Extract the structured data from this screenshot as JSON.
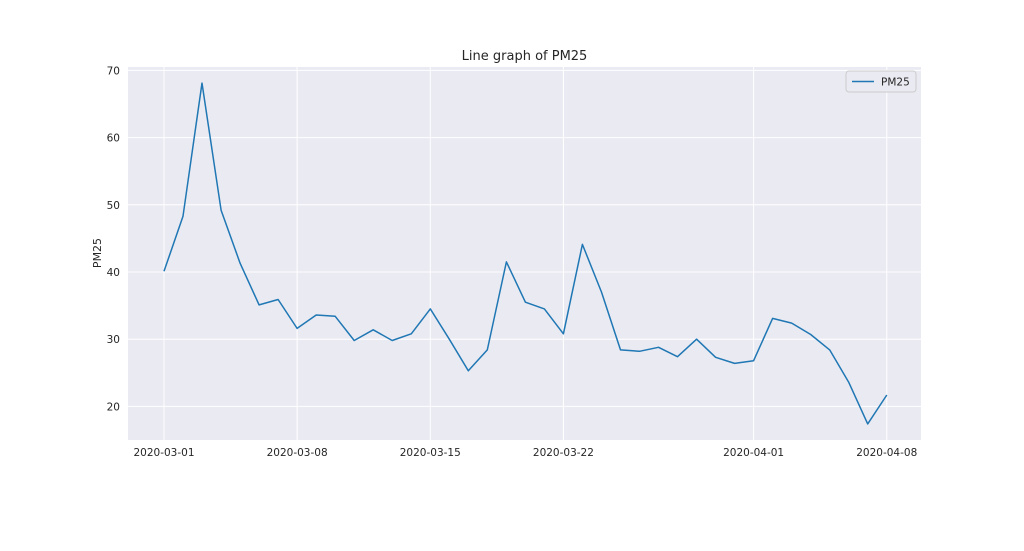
{
  "chart_data": {
    "type": "line",
    "title": "Line graph of PM25",
    "xlabel": "",
    "ylabel": "PM25",
    "x_start": "2020-03-01",
    "x": [
      "2020-03-01",
      "2020-03-02",
      "2020-03-03",
      "2020-03-04",
      "2020-03-05",
      "2020-03-06",
      "2020-03-07",
      "2020-03-08",
      "2020-03-09",
      "2020-03-10",
      "2020-03-11",
      "2020-03-12",
      "2020-03-13",
      "2020-03-14",
      "2020-03-15",
      "2020-03-16",
      "2020-03-17",
      "2020-03-18",
      "2020-03-19",
      "2020-03-20",
      "2020-03-21",
      "2020-03-22",
      "2020-03-23",
      "2020-03-24",
      "2020-03-25",
      "2020-03-26",
      "2020-03-27",
      "2020-03-28",
      "2020-03-29",
      "2020-03-30",
      "2020-03-31",
      "2020-04-01",
      "2020-04-02",
      "2020-04-03",
      "2020-04-04",
      "2020-04-05",
      "2020-04-06",
      "2020-04-07",
      "2020-04-08"
    ],
    "series": [
      {
        "name": "PM25",
        "color": "#1f77b4",
        "values": [
          40.1,
          48.3,
          68.1,
          49.2,
          41.3,
          35.1,
          35.9,
          31.6,
          33.6,
          33.4,
          29.8,
          31.4,
          29.8,
          30.8,
          34.5,
          30.0,
          25.3,
          28.4,
          41.5,
          35.5,
          34.5,
          30.8,
          44.1,
          37.0,
          28.4,
          28.2,
          28.8,
          27.4,
          30.0,
          27.3,
          26.4,
          26.8,
          33.1,
          32.4,
          30.7,
          28.4,
          23.6,
          17.4,
          21.7
        ]
      }
    ],
    "xticks": [
      "2020-03-01",
      "2020-03-08",
      "2020-03-15",
      "2020-03-22",
      "2020-04-01",
      "2020-04-08"
    ],
    "yticks": [
      20,
      30,
      40,
      50,
      60,
      70
    ],
    "ylim": [
      15,
      70.5
    ],
    "grid": true,
    "legend_position": "top-right"
  }
}
